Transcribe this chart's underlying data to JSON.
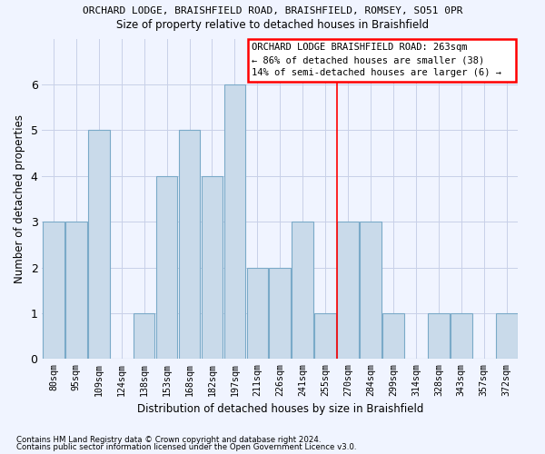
{
  "title": "ORCHARD LODGE, BRAISHFIELD ROAD, BRAISHFIELD, ROMSEY, SO51 0PR",
  "subtitle": "Size of property relative to detached houses in Braishfield",
  "xlabel": "Distribution of detached houses by size in Braishfield",
  "ylabel": "Number of detached properties",
  "bar_color": "#c9daea",
  "bar_edge_color": "#7aaac8",
  "categories": [
    "80sqm",
    "95sqm",
    "109sqm",
    "124sqm",
    "138sqm",
    "153sqm",
    "168sqm",
    "182sqm",
    "197sqm",
    "211sqm",
    "226sqm",
    "241sqm",
    "255sqm",
    "270sqm",
    "284sqm",
    "299sqm",
    "314sqm",
    "328sqm",
    "343sqm",
    "357sqm",
    "372sqm"
  ],
  "values": [
    3,
    3,
    5,
    0,
    1,
    4,
    5,
    4,
    6,
    2,
    2,
    3,
    1,
    3,
    3,
    1,
    0,
    1,
    1,
    0,
    1
  ],
  "ylim": [
    0,
    7
  ],
  "yticks": [
    0,
    1,
    2,
    3,
    4,
    5,
    6
  ],
  "red_line_x": 12.5,
  "annotation_title": "ORCHARD LODGE BRAISHFIELD ROAD: 263sqm",
  "annotation_line1": "← 86% of detached houses are smaller (38)",
  "annotation_line2": "14% of semi-detached houses are larger (6) →",
  "footer1": "Contains HM Land Registry data © Crown copyright and database right 2024.",
  "footer2": "Contains public sector information licensed under the Open Government Licence v3.0.",
  "bg_color": "#f0f4ff",
  "grid_color": "#c8d0e8"
}
